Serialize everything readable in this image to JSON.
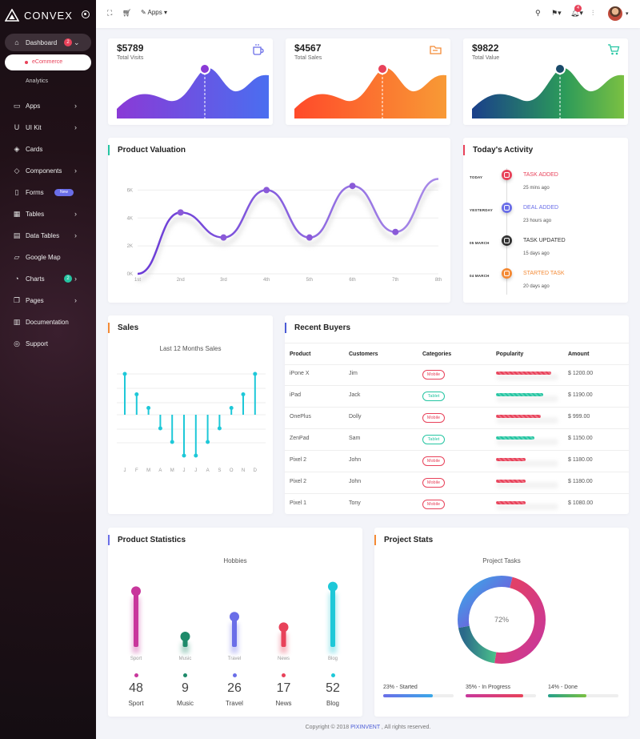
{
  "app": {
    "logo_text": "CONVEX"
  },
  "sidebar": {
    "items": [
      {
        "label": "Dashboard",
        "icon": "home-icon",
        "badge": "2"
      },
      {
        "label": "eCommerce"
      },
      {
        "label": "Analytics"
      },
      {
        "label": "Apps",
        "icon": "monitor-icon"
      },
      {
        "label": "UI Kit",
        "icon": "magnet-icon"
      },
      {
        "label": "Cards",
        "icon": "layers-icon"
      },
      {
        "label": "Components",
        "icon": "tag-icon"
      },
      {
        "label": "Forms",
        "icon": "file-icon",
        "badge": "New"
      },
      {
        "label": "Tables",
        "icon": "grid-icon"
      },
      {
        "label": "Data Tables",
        "icon": "table-icon"
      },
      {
        "label": "Google Map",
        "icon": "map-icon"
      },
      {
        "label": "Charts",
        "icon": "pie-chart-icon",
        "badge": "2"
      },
      {
        "label": "Pages",
        "icon": "pages-icon"
      },
      {
        "label": "Documentation",
        "icon": "book-icon"
      },
      {
        "label": "Support",
        "icon": "life-buoy-icon"
      }
    ]
  },
  "topbar": {
    "apps_label": "Apps",
    "notification_count": "4"
  },
  "stats": [
    {
      "value": "$5789",
      "label": "Total Visits",
      "icon": "coffee-icon",
      "color": "#6a6ee8"
    },
    {
      "value": "$4567",
      "label": "Total Sales",
      "icon": "folder-icon",
      "color": "#f48a35"
    },
    {
      "value": "$9822",
      "label": "Total Value",
      "icon": "cart-icon",
      "color": "#25c5a2"
    }
  ],
  "valuation": {
    "title": "Product Valuation",
    "chart_data": {
      "type": "line",
      "categories": [
        "1st",
        "2nd",
        "3rd",
        "4th",
        "5th",
        "6th",
        "7th",
        "8th"
      ],
      "y_ticks": [
        "0K",
        "2K",
        "4K",
        "6K"
      ],
      "ylim": [
        0,
        7000
      ],
      "values": [
        0,
        4400,
        2600,
        6000,
        2600,
        6300,
        3000,
        6800
      ]
    }
  },
  "activity": {
    "title": "Today's Activity",
    "items": [
      {
        "date": "TODAY",
        "title": "TASK ADDED",
        "time": "25 mins ago",
        "color": "#e8425a",
        "icon": "calendar-icon"
      },
      {
        "date": "YESTERDAY",
        "title": "DEAL ADDED",
        "time": "23 hours ago",
        "color": "#6a6ee8",
        "icon": "eye-icon"
      },
      {
        "date": "05 MARCH",
        "title": "TASK UPDATED",
        "time": "15 days ago",
        "color": "#333333",
        "icon": "monitor-icon"
      },
      {
        "date": "04 MARCH",
        "title": "STARTED TASK",
        "time": "20 days ago",
        "color": "#f48a35",
        "icon": "eye-icon"
      }
    ]
  },
  "sales": {
    "title": "Sales",
    "subtitle": "Last 12 Months Sales",
    "chart_data": {
      "type": "bar",
      "categories": [
        "J",
        "F",
        "M",
        "A",
        "M",
        "J",
        "J",
        "A",
        "S",
        "O",
        "N",
        "D"
      ],
      "values": [
        6,
        3,
        1,
        -2,
        -4,
        -6,
        -6,
        -4,
        -2,
        1,
        3,
        6
      ]
    }
  },
  "buyers": {
    "title": "Recent Buyers",
    "headers": [
      "Product",
      "Customers",
      "Categories",
      "Popularity",
      "Amount"
    ],
    "rows": [
      {
        "product": "iPone X",
        "customer": "Jim",
        "category": "Mobile",
        "popularity": 0.88,
        "amount": "$ 1200.00"
      },
      {
        "product": "iPad",
        "customer": "Jack",
        "category": "Tablet",
        "popularity": 0.75,
        "amount": "$ 1190.00"
      },
      {
        "product": "OnePlus",
        "customer": "Dolly",
        "category": "Mobile",
        "popularity": 0.72,
        "amount": "$ 999.00"
      },
      {
        "product": "ZenPad",
        "customer": "Sam",
        "category": "Tablet",
        "popularity": 0.62,
        "amount": "$ 1150.00"
      },
      {
        "product": "Pixel 2",
        "customer": "John",
        "category": "Mobile",
        "popularity": 0.47,
        "amount": "$ 1180.00"
      },
      {
        "product": "Pixel 2",
        "customer": "John",
        "category": "Mobile",
        "popularity": 0.47,
        "amount": "$ 1180.00"
      },
      {
        "product": "Pixel 1",
        "customer": "Tony",
        "category": "Mobile",
        "popularity": 0.47,
        "amount": "$ 1080.00"
      }
    ]
  },
  "product_stats": {
    "title": "Product Statistics",
    "subtitle": "Hobbies",
    "chart_data": {
      "type": "bar",
      "categories": [
        "Sport",
        "Music",
        "Travel",
        "News",
        "Blog"
      ],
      "values": [
        48,
        9,
        26,
        17,
        52
      ]
    },
    "colors": [
      "#c8379c",
      "#1e8a6a",
      "#6a6ee8",
      "#e8425a",
      "#1ec8d8"
    ]
  },
  "project_stats": {
    "title": "Project Stats",
    "subtitle": "Project Tasks",
    "center_label": "72%",
    "chart_data": {
      "type": "pie",
      "categories": [
        "Started",
        "In Progress",
        "Done"
      ],
      "values": [
        23,
        35,
        14
      ]
    },
    "legend": [
      {
        "label": "23% - Started",
        "value": 0.7,
        "color": "#6a6ee8"
      },
      {
        "label": "35% - In Progress",
        "value": 0.82,
        "color": "#c8379c"
      },
      {
        "label": "14% - Done",
        "value": 0.55,
        "color": "#25a08a"
      }
    ]
  },
  "footer": {
    "prefix": "Copyright © 2018",
    "brand": "PIXINVENT",
    "suffix": ", All rights reserved."
  }
}
